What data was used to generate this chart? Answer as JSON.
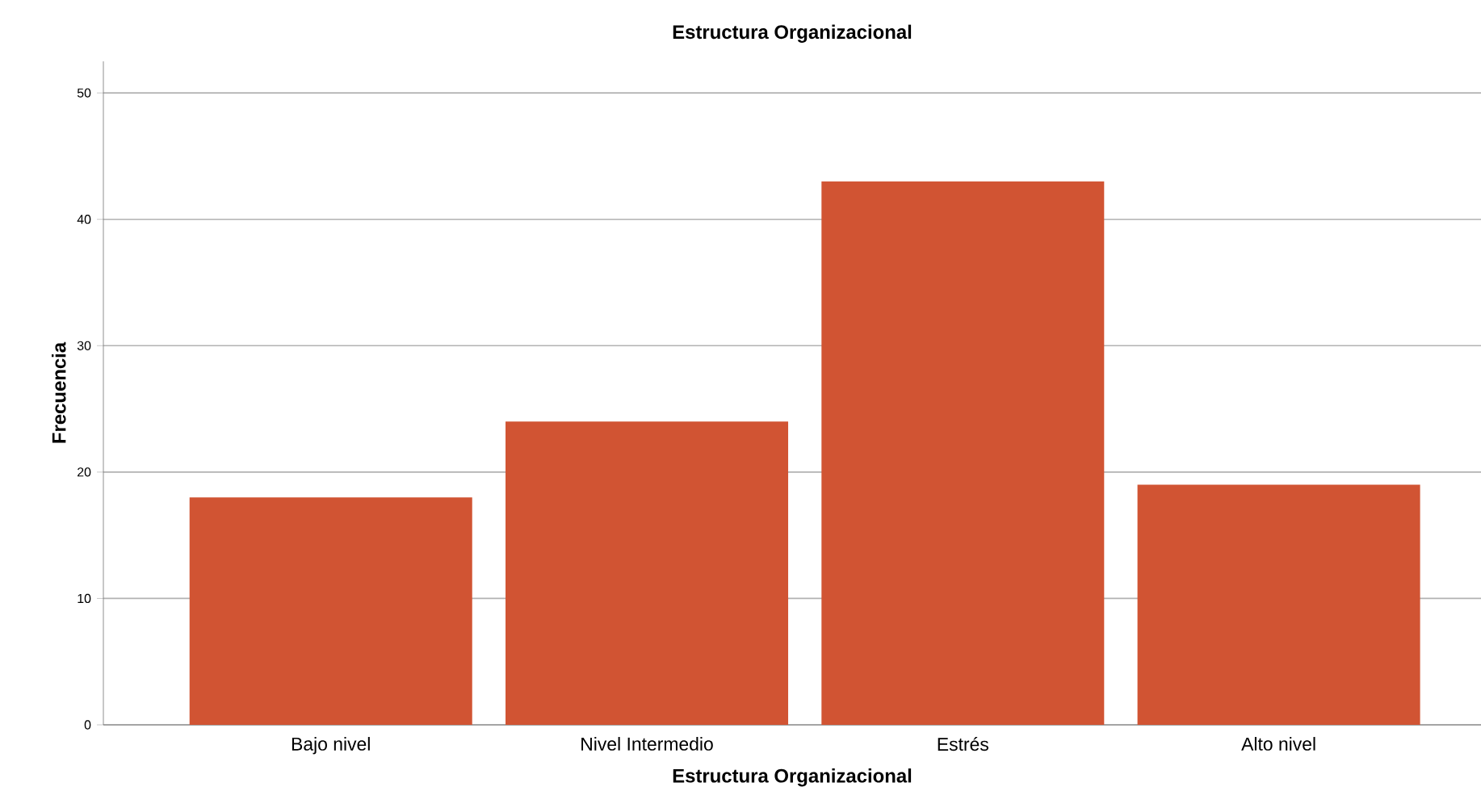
{
  "chart_data": {
    "type": "bar",
    "title": "Estructura Organizacional",
    "xlabel": "Estructura Organizacional",
    "ylabel": "Frecuencia",
    "categories": [
      "Bajo nivel",
      "Nivel Intermedio",
      "Estrés",
      "Alto nivel"
    ],
    "values": [
      18,
      24,
      43,
      19
    ],
    "color": "#d15433",
    "ylim": [
      0,
      52.5
    ],
    "yticks": [
      0,
      10,
      20,
      30,
      40,
      50
    ],
    "grid": "y"
  }
}
